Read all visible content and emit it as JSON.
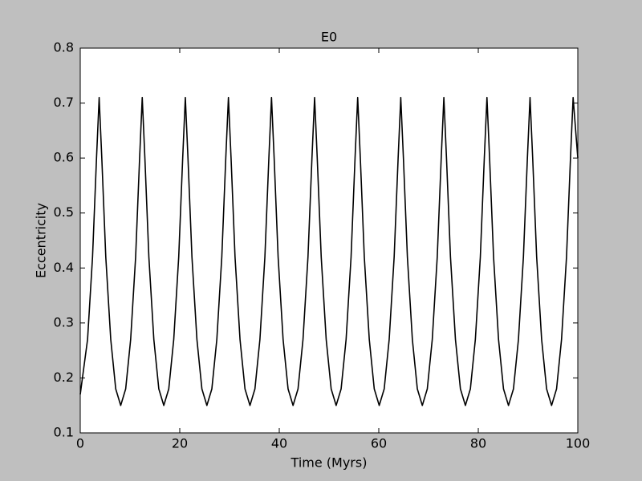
{
  "chart_data": {
    "type": "line",
    "title": "E0",
    "xlabel": "Time (Myrs)",
    "ylabel": "Eccentricity",
    "xlim": [
      0,
      100
    ],
    "ylim": [
      0.1,
      0.8
    ],
    "xticks": [
      0,
      20,
      40,
      60,
      80,
      100
    ],
    "yticks": [
      0.1,
      0.2,
      0.3,
      0.4,
      0.5,
      0.6,
      0.7,
      0.8
    ],
    "grid": false,
    "series": [
      {
        "color": "#000000",
        "x": [
          0,
          1.47,
          2.47,
          3.27,
          3.8,
          4.33,
          5.13,
          6.13,
          7.13,
          8.13,
          9.13,
          10.13,
          11.13,
          11.93,
          12.46,
          12.99,
          13.79,
          14.79,
          15.79,
          16.79,
          17.79,
          18.79,
          19.79,
          20.59,
          21.12,
          21.65,
          22.45,
          23.45,
          24.45,
          25.45,
          26.45,
          27.45,
          28.45,
          29.25,
          29.78,
          30.31,
          31.11,
          32.11,
          33.11,
          34.11,
          35.11,
          36.11,
          37.11,
          37.91,
          38.44,
          38.97,
          39.77,
          40.77,
          41.77,
          42.77,
          43.77,
          44.77,
          45.77,
          46.57,
          47.1,
          47.63,
          48.43,
          49.43,
          50.43,
          51.43,
          52.43,
          53.43,
          54.43,
          55.23,
          55.76,
          56.29,
          57.09,
          58.09,
          59.09,
          60.09,
          61.09,
          62.09,
          63.09,
          63.89,
          64.42,
          64.95,
          65.75,
          66.75,
          67.75,
          68.75,
          69.75,
          70.75,
          71.75,
          72.55,
          73.08,
          73.61,
          74.41,
          75.41,
          76.41,
          77.41,
          78.41,
          79.41,
          80.41,
          81.21,
          81.74,
          82.27,
          83.07,
          84.07,
          85.07,
          86.07,
          87.07,
          88.07,
          89.07,
          89.87,
          90.4,
          90.93,
          91.73,
          92.73,
          93.73,
          94.73,
          95.73,
          96.73,
          97.73,
          98.53,
          99.06,
          100
        ],
        "values": [
          0.17,
          0.27,
          0.42,
          0.6,
          0.71,
          0.6,
          0.42,
          0.27,
          0.18,
          0.15,
          0.18,
          0.27,
          0.42,
          0.6,
          0.71,
          0.6,
          0.42,
          0.27,
          0.18,
          0.15,
          0.18,
          0.27,
          0.42,
          0.6,
          0.71,
          0.6,
          0.42,
          0.27,
          0.18,
          0.15,
          0.18,
          0.27,
          0.42,
          0.6,
          0.71,
          0.6,
          0.42,
          0.27,
          0.18,
          0.15,
          0.18,
          0.27,
          0.42,
          0.6,
          0.71,
          0.6,
          0.42,
          0.27,
          0.18,
          0.15,
          0.18,
          0.27,
          0.42,
          0.6,
          0.71,
          0.6,
          0.42,
          0.27,
          0.18,
          0.15,
          0.18,
          0.27,
          0.42,
          0.6,
          0.71,
          0.6,
          0.42,
          0.27,
          0.18,
          0.15,
          0.18,
          0.27,
          0.42,
          0.6,
          0.71,
          0.6,
          0.42,
          0.27,
          0.18,
          0.15,
          0.18,
          0.27,
          0.42,
          0.6,
          0.71,
          0.6,
          0.42,
          0.27,
          0.18,
          0.15,
          0.18,
          0.27,
          0.42,
          0.6,
          0.71,
          0.6,
          0.42,
          0.27,
          0.18,
          0.15,
          0.18,
          0.27,
          0.42,
          0.6,
          0.71,
          0.6,
          0.42,
          0.27,
          0.18,
          0.15,
          0.18,
          0.27,
          0.42,
          0.6,
          0.71,
          0.6
        ]
      }
    ]
  }
}
